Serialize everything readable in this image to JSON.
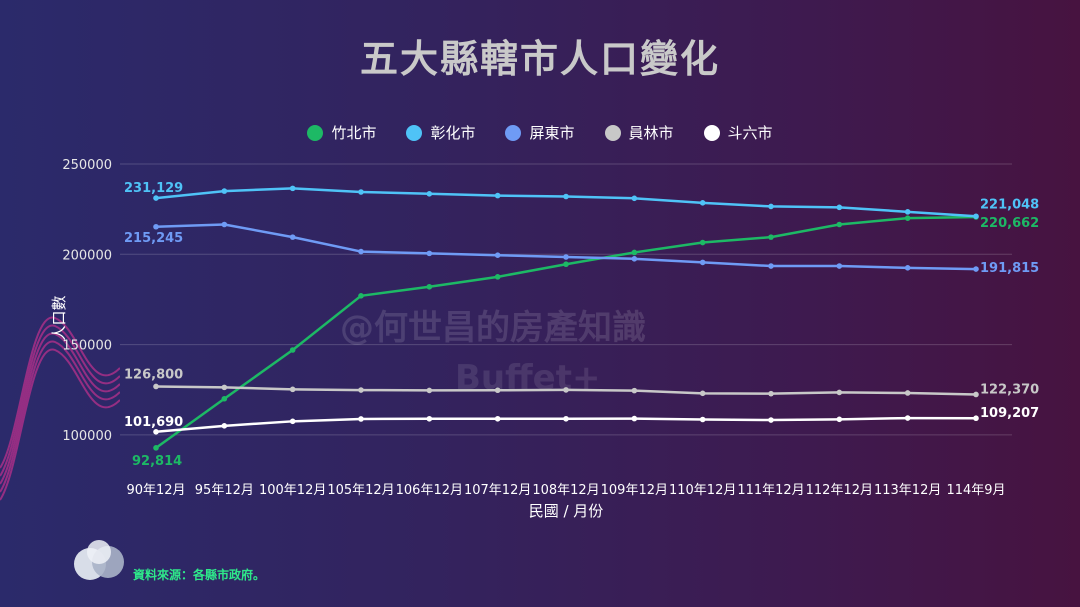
{
  "title": "五大縣轄市人口變化",
  "source": "資料來源：各縣市政府。",
  "watermark": "@何世昌的房產知識",
  "watermark_brand": "Buffet+",
  "chart_data": {
    "type": "line",
    "title": "五大縣轄市人口變化",
    "xlabel": "民國 / 月份",
    "ylabel": "人口數",
    "ylim": [
      75000,
      250000
    ],
    "yticks": [
      100000,
      150000,
      200000,
      250000
    ],
    "grid": true,
    "legend_position": "top",
    "categories": [
      "90年12月",
      "95年12月",
      "100年12月",
      "105年12月",
      "106年12月",
      "107年12月",
      "108年12月",
      "109年12月",
      "110年12月",
      "111年12月",
      "112年12月",
      "113年12月",
      "114年9月"
    ],
    "series": [
      {
        "name": "竹北市",
        "color": "#1db965",
        "values": [
          92814,
          120000,
          147000,
          177000,
          182000,
          187500,
          194500,
          201000,
          206500,
          209500,
          216500,
          220000,
          220662
        ]
      },
      {
        "name": "彰化市",
        "color": "#4fc3f7",
        "values": [
          231129,
          235000,
          236500,
          234500,
          233500,
          232500,
          232000,
          231000,
          228500,
          226500,
          226000,
          223500,
          221048
        ]
      },
      {
        "name": "屏東市",
        "color": "#6f9bf5",
        "values": [
          215245,
          216500,
          209500,
          201500,
          200500,
          199500,
          198500,
          197500,
          195500,
          193500,
          193500,
          192500,
          191815
        ]
      },
      {
        "name": "員林市",
        "color": "#c8c8c8",
        "values": [
          126800,
          126300,
          125200,
          124800,
          124600,
          124700,
          124900,
          124500,
          123000,
          122800,
          123500,
          123200,
          122370
        ]
      },
      {
        "name": "斗六市",
        "color": "#ffffff",
        "values": [
          101690,
          105000,
          107500,
          108800,
          108900,
          108900,
          108900,
          109000,
          108500,
          108200,
          108600,
          109300,
          109207
        ]
      }
    ],
    "annotations": [
      {
        "series": "彰化市",
        "side": "start",
        "text": "231,129"
      },
      {
        "series": "屏東市",
        "side": "start",
        "text": "215,245"
      },
      {
        "series": "員林市",
        "side": "start",
        "text": "126,800"
      },
      {
        "series": "斗六市",
        "side": "start",
        "text": "101,690"
      },
      {
        "series": "竹北市",
        "side": "start",
        "text": "92,814"
      },
      {
        "series": "彰化市",
        "side": "end",
        "text": "221,048"
      },
      {
        "series": "竹北市",
        "side": "end",
        "text": "220,662"
      },
      {
        "series": "屏東市",
        "side": "end",
        "text": "191,815"
      },
      {
        "series": "員林市",
        "side": "end",
        "text": "122,370"
      },
      {
        "series": "斗六市",
        "side": "end",
        "text": "109,207"
      }
    ]
  }
}
